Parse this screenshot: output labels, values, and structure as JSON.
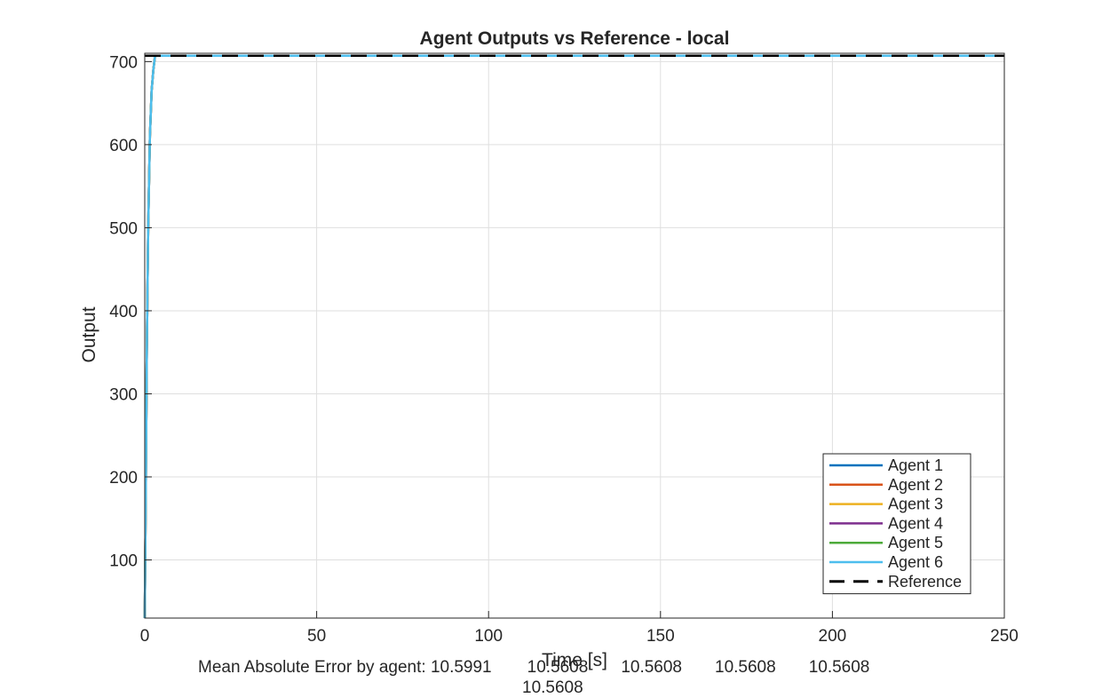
{
  "chart_data": {
    "type": "line",
    "title": "Agent Outputs vs Reference - local",
    "xlabel": "Time [s]",
    "ylabel": "Output",
    "xlim": [
      0,
      250
    ],
    "ylim": [
      30,
      710
    ],
    "xticks": [
      0,
      50,
      100,
      150,
      200,
      250
    ],
    "yticks": [
      100,
      200,
      300,
      400,
      500,
      600,
      700
    ],
    "xtick_labels": [
      "0",
      "50",
      "100",
      "150",
      "200",
      "250"
    ],
    "ytick_labels": [
      "100",
      "200",
      "300",
      "400",
      "500",
      "600",
      "700"
    ],
    "grid": true,
    "legend_position": "bottom-right",
    "reference": {
      "name": "Reference",
      "value": 707,
      "color": "#000000",
      "style": "dashed"
    },
    "series": [
      {
        "name": "Agent 1",
        "color": "#0072BD",
        "x": [
          0,
          0.3,
          0.6,
          1.0,
          1.5,
          2.0,
          2.5,
          3.0,
          250
        ],
        "values": [
          30,
          180,
          350,
          500,
          610,
          665,
          690,
          707,
          707
        ]
      },
      {
        "name": "Agent 2",
        "color": "#D95319",
        "x": [
          0,
          0.3,
          0.6,
          1.0,
          1.5,
          2.0,
          2.5,
          3.0,
          250
        ],
        "values": [
          30,
          180,
          350,
          500,
          610,
          665,
          690,
          707,
          707
        ]
      },
      {
        "name": "Agent 3",
        "color": "#EDB120",
        "x": [
          0,
          0.3,
          0.6,
          1.0,
          1.5,
          2.0,
          2.5,
          3.0,
          250
        ],
        "values": [
          30,
          180,
          350,
          500,
          610,
          665,
          690,
          707,
          707
        ]
      },
      {
        "name": "Agent 4",
        "color": "#7E2F8E",
        "x": [
          0,
          0.3,
          0.6,
          1.0,
          1.5,
          2.0,
          2.5,
          3.0,
          250
        ],
        "values": [
          30,
          180,
          350,
          500,
          610,
          665,
          690,
          707,
          707
        ]
      },
      {
        "name": "Agent 5",
        "color": "#4DAA3A",
        "x": [
          0,
          0.3,
          0.6,
          1.0,
          1.5,
          2.0,
          2.5,
          3.0,
          250
        ],
        "values": [
          30,
          180,
          350,
          500,
          610,
          665,
          690,
          707,
          707
        ]
      },
      {
        "name": "Agent 6",
        "color": "#4DBEEE",
        "x": [
          0,
          0.3,
          0.6,
          1.0,
          1.5,
          2.0,
          2.5,
          3.0,
          250
        ],
        "values": [
          30,
          180,
          350,
          500,
          610,
          665,
          690,
          707,
          707
        ]
      }
    ],
    "footer": {
      "prefix": "Mean Absolute Error by agent:",
      "values": [
        "10.5991",
        "10.5608",
        "10.5608",
        "10.5608",
        "10.5608",
        "10.5608"
      ]
    }
  }
}
